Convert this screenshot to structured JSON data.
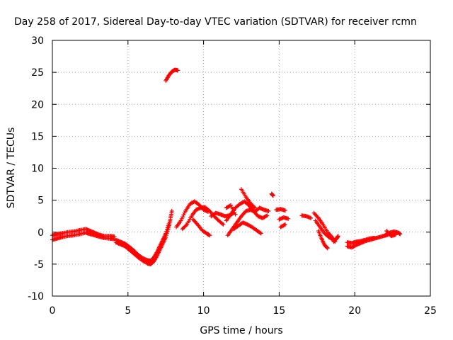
{
  "colors": {
    "series": "#ff0000",
    "grid": "#a0a0a0",
    "axis": "#000000",
    "background": "#ffffff"
  },
  "chart_data": {
    "type": "scatter",
    "title": "Day 258 of 2017, Sidereal Day-to-day VTEC variation (SDTVAR) for receiver rcmn",
    "xlabel": "GPS time / hours",
    "ylabel": "SDTVAR / TECUs",
    "xlim": [
      0,
      25
    ],
    "ylim": [
      -10,
      30
    ],
    "xticks": [
      0,
      5,
      10,
      15,
      20,
      25
    ],
    "yticks": [
      -10,
      -5,
      0,
      5,
      10,
      15,
      20,
      25,
      30
    ],
    "grid": true,
    "marker": "plus",
    "series": [
      {
        "name": "SDTVAR",
        "tracks": [
          [
            [
              0.0,
              -1.2
            ],
            [
              0.3,
              -1.0
            ],
            [
              0.6,
              -0.8
            ],
            [
              1.0,
              -0.6
            ],
            [
              1.4,
              -0.5
            ],
            [
              1.8,
              -0.3
            ],
            [
              2.2,
              -0.1
            ],
            [
              2.5,
              -0.3
            ],
            [
              2.8,
              -0.5
            ],
            [
              3.1,
              -0.7
            ],
            [
              3.4,
              -0.9
            ],
            [
              3.8,
              -1.0
            ],
            [
              4.1,
              -1.1
            ]
          ],
          [
            [
              0.0,
              -0.5
            ],
            [
              0.3,
              -0.3
            ],
            [
              0.6,
              -0.2
            ],
            [
              1.0,
              0.0
            ],
            [
              1.4,
              0.1
            ],
            [
              1.8,
              0.3
            ],
            [
              2.2,
              0.5
            ],
            [
              2.5,
              0.2
            ],
            [
              2.8,
              -0.1
            ],
            [
              3.1,
              -0.4
            ],
            [
              3.4,
              -0.6
            ],
            [
              3.8,
              -0.6
            ],
            [
              4.1,
              -0.7
            ]
          ],
          [
            [
              4.2,
              -1.6
            ],
            [
              4.5,
              -1.9
            ],
            [
              4.8,
              -2.2
            ],
            [
              5.1,
              -2.8
            ],
            [
              5.4,
              -3.4
            ],
            [
              5.7,
              -4.0
            ],
            [
              6.0,
              -4.5
            ],
            [
              6.3,
              -4.9
            ],
            [
              6.5,
              -5.0
            ],
            [
              6.7,
              -4.6
            ],
            [
              6.9,
              -3.8
            ],
            [
              7.1,
              -2.8
            ],
            [
              7.3,
              -1.8
            ],
            [
              7.5,
              -0.8
            ],
            [
              7.7,
              0.8
            ],
            [
              7.8,
              2.0
            ],
            [
              7.9,
              3.3
            ]
          ],
          [
            [
              4.2,
              -1.2
            ],
            [
              4.5,
              -1.5
            ],
            [
              4.8,
              -1.8
            ],
            [
              5.1,
              -2.3
            ],
            [
              5.4,
              -2.9
            ],
            [
              5.7,
              -3.6
            ],
            [
              6.0,
              -4.1
            ],
            [
              6.3,
              -4.4
            ],
            [
              6.5,
              -4.5
            ],
            [
              6.7,
              -4.0
            ],
            [
              6.9,
              -3.2
            ],
            [
              7.1,
              -2.2
            ],
            [
              7.3,
              -1.2
            ],
            [
              7.5,
              -0.2
            ],
            [
              7.7,
              1.3
            ]
          ],
          [
            [
              7.5,
              23.7
            ],
            [
              7.7,
              24.5
            ],
            [
              7.9,
              25.1
            ],
            [
              8.1,
              25.4
            ],
            [
              8.3,
              25.3
            ]
          ],
          [
            [
              8.2,
              0.8
            ],
            [
              8.5,
              1.8
            ],
            [
              8.8,
              3.3
            ],
            [
              9.1,
              4.4
            ],
            [
              9.4,
              4.8
            ],
            [
              9.7,
              4.3
            ],
            [
              10.0,
              3.5
            ],
            [
              10.3,
              3.2
            ]
          ],
          [
            [
              8.6,
              0.5
            ],
            [
              8.9,
              1.2
            ],
            [
              9.2,
              2.5
            ],
            [
              9.5,
              3.5
            ],
            [
              9.8,
              3.8
            ],
            [
              10.1,
              3.9
            ],
            [
              10.4,
              3.3
            ],
            [
              10.7,
              2.5
            ],
            [
              11.0,
              1.8
            ],
            [
              11.3,
              1.2
            ]
          ],
          [
            [
              9.3,
              2.0
            ],
            [
              9.6,
              1.2
            ],
            [
              9.9,
              0.3
            ],
            [
              10.2,
              -0.2
            ],
            [
              10.4,
              -0.5
            ]
          ],
          [
            [
              10.5,
              2.5
            ],
            [
              10.8,
              3.0
            ],
            [
              11.1,
              2.8
            ],
            [
              11.4,
              2.5
            ],
            [
              11.7,
              2.6
            ],
            [
              12.0,
              3.0
            ]
          ],
          [
            [
              11.5,
              1.8
            ],
            [
              11.8,
              2.8
            ],
            [
              12.1,
              3.8
            ],
            [
              12.4,
              4.4
            ],
            [
              12.7,
              4.8
            ],
            [
              13.0,
              4.2
            ],
            [
              13.3,
              3.3
            ],
            [
              13.6,
              2.5
            ],
            [
              13.9,
              2.2
            ],
            [
              14.2,
              2.6
            ]
          ],
          [
            [
              11.6,
              -0.5
            ],
            [
              11.9,
              0.5
            ],
            [
              12.2,
              1.5
            ],
            [
              12.5,
              2.5
            ],
            [
              12.8,
              3.3
            ],
            [
              13.1,
              3.5
            ],
            [
              13.4,
              3.2
            ],
            [
              13.7,
              3.8
            ],
            [
              14.0,
              3.5
            ],
            [
              14.3,
              3.3
            ]
          ],
          [
            [
              12.0,
              0.5
            ],
            [
              12.3,
              1.0
            ],
            [
              12.6,
              1.5
            ],
            [
              12.9,
              1.2
            ],
            [
              13.2,
              0.8
            ],
            [
              13.5,
              0.3
            ],
            [
              13.8,
              -0.2
            ]
          ],
          [
            [
              12.5,
              6.7
            ],
            [
              12.8,
              5.5
            ],
            [
              13.1,
              4.5
            ],
            [
              13.4,
              3.8
            ]
          ],
          [
            [
              11.5,
              3.8
            ],
            [
              11.8,
              4.2
            ],
            [
              12.1,
              2.8
            ]
          ],
          [
            [
              14.5,
              6.0
            ],
            [
              14.6,
              5.7
            ]
          ],
          [
            [
              14.8,
              3.5
            ],
            [
              15.1,
              3.6
            ],
            [
              15.4,
              3.4
            ]
          ],
          [
            [
              15.0,
              2.0
            ],
            [
              15.3,
              2.3
            ],
            [
              15.6,
              2.1
            ]
          ],
          [
            [
              15.1,
              0.8
            ],
            [
              15.4,
              1.2
            ]
          ],
          [
            [
              16.5,
              2.6
            ],
            [
              16.8,
              2.5
            ],
            [
              17.1,
              2.2
            ]
          ],
          [
            [
              17.3,
              3.0
            ],
            [
              17.6,
              2.2
            ],
            [
              17.9,
              1.2
            ],
            [
              18.2,
              0.0
            ],
            [
              18.5,
              -0.8
            ],
            [
              18.7,
              -1.5
            ]
          ],
          [
            [
              17.4,
              1.8
            ],
            [
              17.7,
              0.8
            ],
            [
              18.0,
              -0.2
            ],
            [
              18.3,
              -0.8
            ],
            [
              18.6,
              -1.2
            ]
          ],
          [
            [
              17.6,
              0.2
            ],
            [
              17.8,
              -1.0
            ],
            [
              18.0,
              -2.0
            ],
            [
              18.2,
              -2.5
            ]
          ],
          [
            [
              18.6,
              -1.5
            ],
            [
              18.8,
              -1.0
            ],
            [
              18.9,
              -0.6
            ]
          ],
          [
            [
              19.5,
              -2.2
            ],
            [
              19.8,
              -2.4
            ],
            [
              20.1,
              -2.0
            ],
            [
              20.4,
              -1.7
            ],
            [
              20.7,
              -1.4
            ],
            [
              21.0,
              -1.2
            ],
            [
              21.3,
              -1.0
            ],
            [
              21.6,
              -0.8
            ],
            [
              21.9,
              -0.6
            ],
            [
              22.2,
              -0.4
            ]
          ],
          [
            [
              19.5,
              -1.6
            ],
            [
              19.8,
              -1.7
            ],
            [
              20.1,
              -1.5
            ],
            [
              20.4,
              -1.4
            ],
            [
              20.7,
              -1.2
            ],
            [
              21.0,
              -1.0
            ],
            [
              21.3,
              -0.9
            ]
          ],
          [
            [
              22.0,
              -0.5
            ],
            [
              22.3,
              -0.1
            ],
            [
              22.6,
              0.1
            ],
            [
              22.9,
              -0.1
            ],
            [
              23.0,
              -0.3
            ]
          ],
          [
            [
              22.1,
              0.2
            ],
            [
              22.4,
              -0.6
            ],
            [
              22.7,
              -0.4
            ]
          ]
        ]
      }
    ]
  }
}
